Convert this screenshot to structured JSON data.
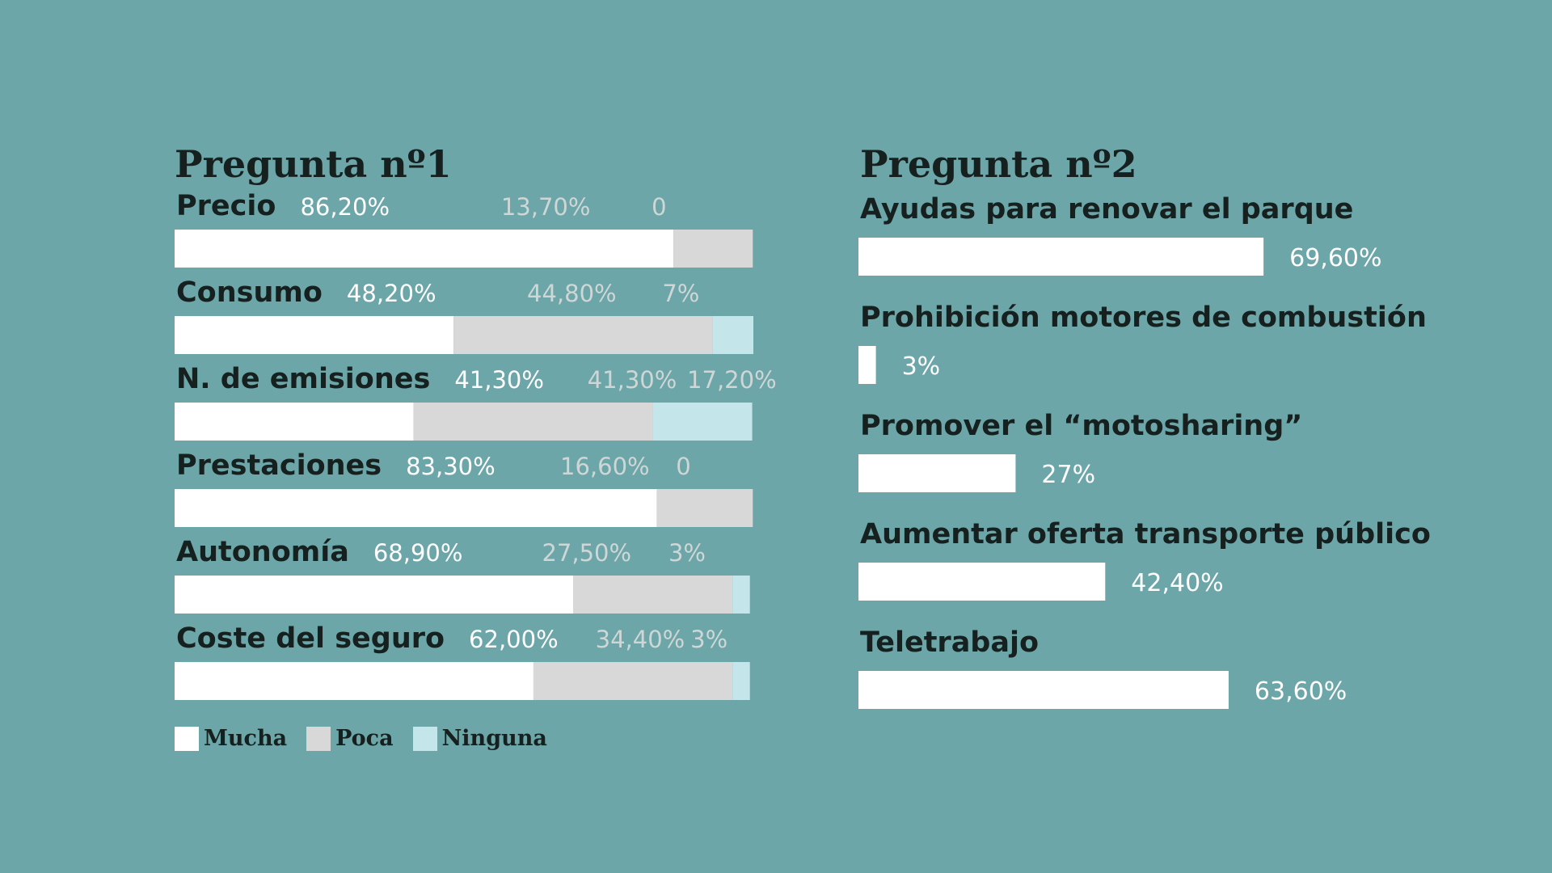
{
  "colors": {
    "background": "#6ca6a8",
    "mucha": "#ffffff",
    "poca": "#d8d8d8",
    "ninguna": "#c4e6ea",
    "label_dark": "#16201f",
    "value_white": "#ffffff",
    "value_gray": "#cfd6d6"
  },
  "chart_data": [
    {
      "type": "bar",
      "stacked": true,
      "orientation": "horizontal",
      "title": "Pregunta nº1",
      "legend_position": "bottom-left",
      "categories": [
        "Precio",
        "Consumo",
        "N. de emisiones",
        "Prestaciones",
        "Autonomía",
        "Coste del seguro"
      ],
      "series": [
        {
          "name": "Mucha",
          "values": [
            86.2,
            48.2,
            41.3,
            83.3,
            68.9,
            62.0
          ]
        },
        {
          "name": "Poca",
          "values": [
            13.7,
            44.8,
            41.3,
            16.6,
            27.5,
            34.4
          ]
        },
        {
          "name": "Ninguna",
          "values": [
            0,
            7,
            17.2,
            0,
            3,
            3
          ]
        }
      ],
      "value_labels": [
        [
          "86,20%",
          "13,70%",
          "0"
        ],
        [
          "48,20%",
          "44,80%",
          "7%"
        ],
        [
          "41,30%",
          "41,30%",
          "17,20%"
        ],
        [
          "83,30%",
          "16,60%",
          "0"
        ],
        [
          "68,90%",
          "27,50%",
          "3%"
        ],
        [
          "62,00%",
          "34,40%",
          "3%"
        ]
      ],
      "xlim": [
        0,
        100
      ]
    },
    {
      "type": "bar",
      "orientation": "horizontal",
      "title": "Pregunta nº2",
      "categories": [
        "Ayudas para renovar el parque",
        "Prohibición motores de combustión",
        "Promover el “motosharing”",
        "Aumentar oferta transporte público",
        "Teletrabajo"
      ],
      "values": [
        69.6,
        3,
        27,
        42.4,
        63.6
      ],
      "value_labels": [
        "69,60%",
        "3%",
        "27%",
        "42,40%",
        "63,60%"
      ],
      "xlim": [
        0,
        100
      ]
    }
  ]
}
